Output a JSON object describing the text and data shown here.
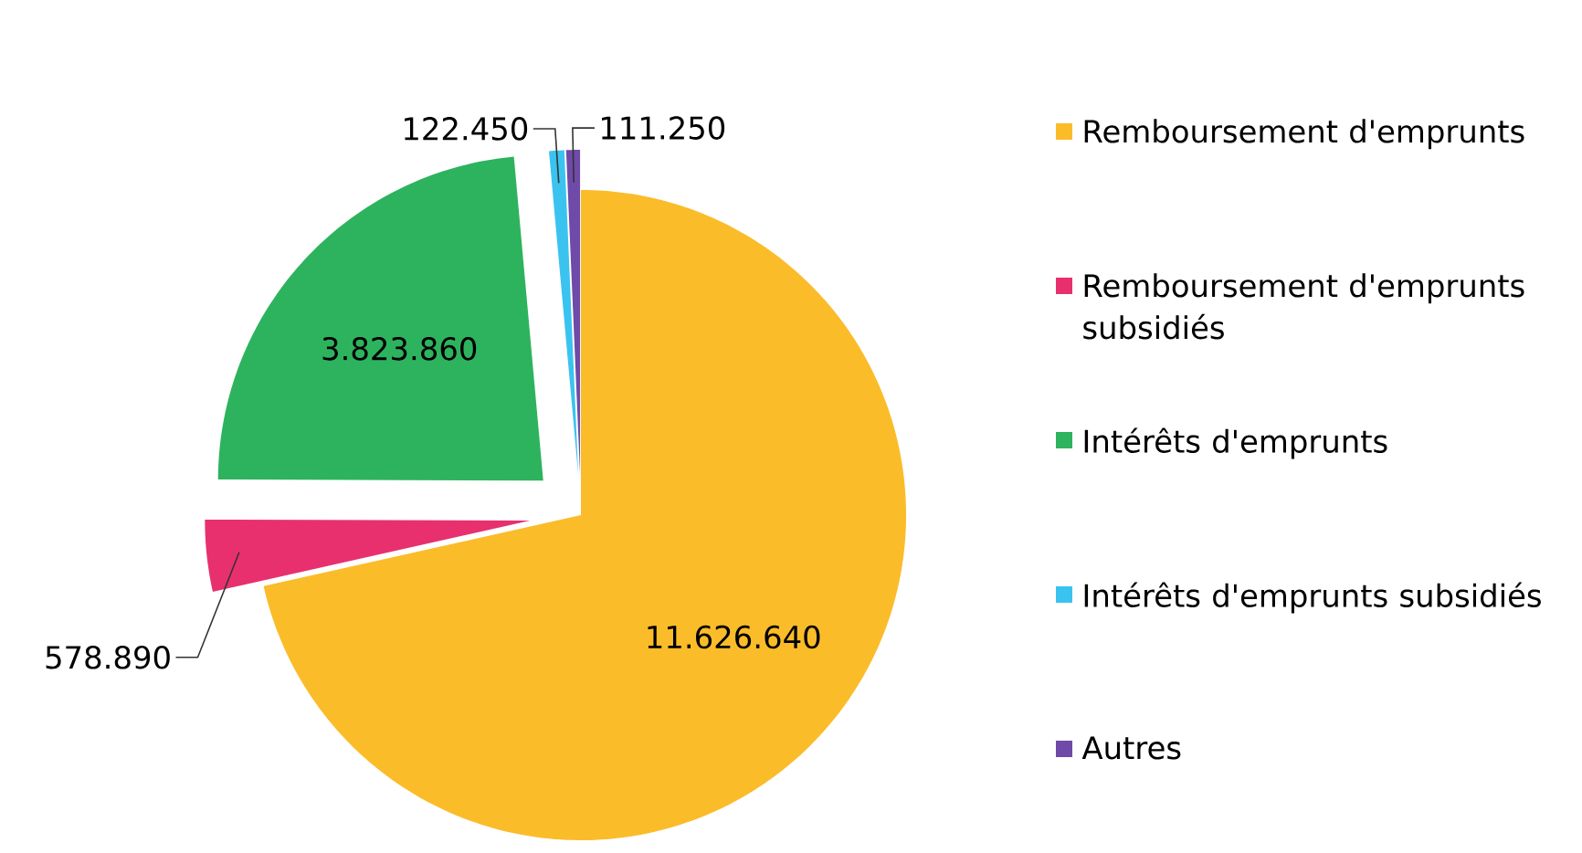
{
  "chart_data": {
    "type": "pie",
    "categories": [
      "Remboursement d'emprunts",
      "Remboursement d'emprunts subsidiés",
      "Intérêts d'emprunts",
      "Intérêts d'emprunts subsidiés",
      "Autres"
    ],
    "values": [
      11626640,
      578890,
      3823860,
      122450,
      111250
    ],
    "colors": [
      "#fbbc2a",
      "#e8306f",
      "#2db35d",
      "#3bc3f0",
      "#6f4aa8"
    ],
    "value_labels": [
      "11.626.640",
      "578.890",
      "3.823.860",
      "122.450",
      "111.250"
    ],
    "legend": "right"
  }
}
